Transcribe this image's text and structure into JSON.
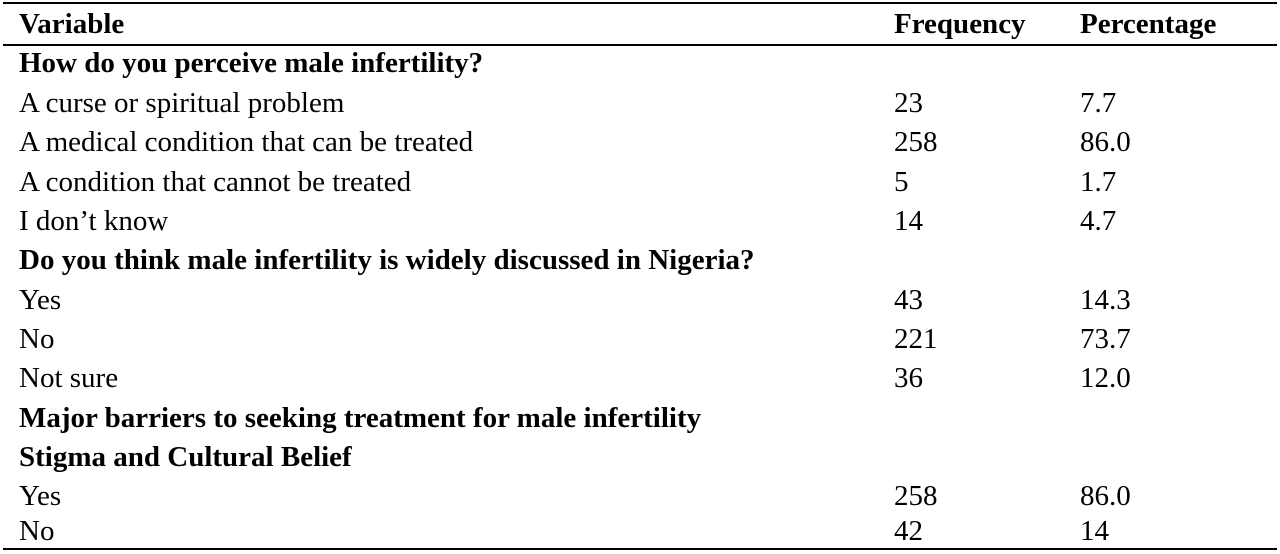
{
  "header": {
    "variable": "Variable",
    "frequency": "Frequency",
    "percentage": "Percentage"
  },
  "rows": [
    {
      "label": "How do you perceive male infertility?",
      "frequency": "",
      "percentage": "",
      "section": true
    },
    {
      "label": "A curse or spiritual problem",
      "frequency": "23",
      "percentage": "7.7",
      "section": false
    },
    {
      "label": "A medical condition that can be treated",
      "frequency": "258",
      "percentage": "86.0",
      "section": false
    },
    {
      "label": "A condition that cannot be treated",
      "frequency": "5",
      "percentage": "1.7",
      "section": false
    },
    {
      "label": "I don’t know",
      "frequency": "14",
      "percentage": "4.7",
      "section": false
    },
    {
      "label": "Do you think male infertility is widely discussed in Nigeria?",
      "frequency": "",
      "percentage": "",
      "section": true
    },
    {
      "label": "Yes",
      "frequency": "43",
      "percentage": "14.3",
      "section": false
    },
    {
      "label": "No",
      "frequency": "221",
      "percentage": "73.7",
      "section": false
    },
    {
      "label": "Not sure",
      "frequency": "36",
      "percentage": "12.0",
      "section": false
    },
    {
      "label": "Major barriers to seeking treatment for male infertility",
      "frequency": "",
      "percentage": "",
      "section": true
    },
    {
      "label": "Stigma and Cultural Belief",
      "frequency": "",
      "percentage": "",
      "section": true
    },
    {
      "label": "Yes",
      "frequency": "258",
      "percentage": "86.0",
      "section": false
    },
    {
      "label": "No",
      "frequency": "42",
      "percentage": "14",
      "section": false
    }
  ]
}
